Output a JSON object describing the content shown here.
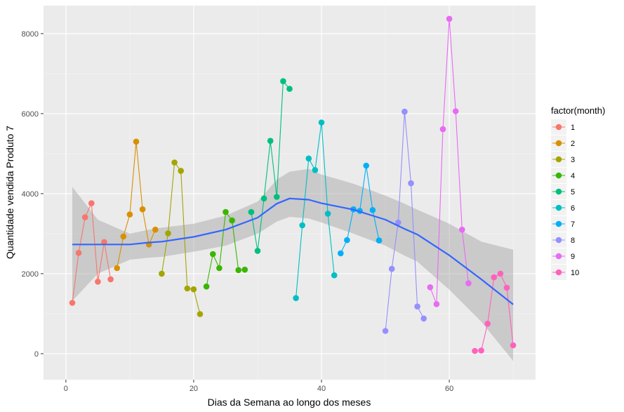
{
  "chart_data": {
    "type": "line",
    "xlabel": "Dias da Semana ao longo dos meses",
    "ylabel": "Quantidade vendida Produto 7",
    "xlim": [
      -3.5,
      73.5
    ],
    "ylim": [
      -650,
      8700
    ],
    "x_ticks": [
      0,
      20,
      40,
      60
    ],
    "y_ticks": [
      0,
      2000,
      4000,
      6000,
      8000
    ],
    "x_tick_labels": [
      "0",
      "20",
      "40",
      "60"
    ],
    "y_tick_labels": [
      "0",
      "2000",
      "4000",
      "6000",
      "8000"
    ],
    "grid": true,
    "legend": {
      "title": "factor(month)",
      "position": "right"
    },
    "series": [
      {
        "name": "1",
        "color": "#F8766D",
        "x": [
          1,
          2,
          3,
          4,
          5,
          6,
          7
        ],
        "y": [
          1270,
          2520,
          3410,
          3760,
          1800,
          2790,
          1860
        ]
      },
      {
        "name": "2",
        "color": "#D89000",
        "x": [
          8,
          9,
          10,
          11,
          12,
          13,
          14
        ],
        "y": [
          2140,
          2930,
          3480,
          5300,
          3610,
          2730,
          3100
        ]
      },
      {
        "name": "3",
        "color": "#A3A500",
        "x": [
          15,
          16,
          17,
          18,
          19,
          20,
          21
        ],
        "y": [
          2000,
          3010,
          4780,
          4570,
          1630,
          1610,
          990
        ]
      },
      {
        "name": "4",
        "color": "#39B600",
        "x": [
          22,
          23,
          24,
          25,
          26,
          27,
          28
        ],
        "y": [
          1680,
          2490,
          2140,
          3540,
          3330,
          2090,
          2100
        ]
      },
      {
        "name": "5",
        "color": "#00BF7D",
        "x": [
          29,
          30,
          31,
          32,
          33,
          34,
          35
        ],
        "y": [
          3540,
          2570,
          3880,
          5320,
          3920,
          6810,
          6620
        ]
      },
      {
        "name": "6",
        "color": "#00BFC4",
        "x": [
          36,
          37,
          38,
          39,
          40,
          41,
          42
        ],
        "y": [
          1390,
          3210,
          4880,
          4590,
          5780,
          3500,
          1960
        ]
      },
      {
        "name": "7",
        "color": "#00B0F6",
        "x": [
          43,
          44,
          45,
          46,
          47,
          48,
          49
        ],
        "y": [
          2510,
          2840,
          3610,
          3570,
          4700,
          3590,
          2830
        ]
      },
      {
        "name": "8",
        "color": "#9590FF",
        "x": [
          50,
          51,
          52,
          53,
          54,
          55,
          56
        ],
        "y": [
          570,
          2120,
          3280,
          6050,
          4260,
          1180,
          880
        ]
      },
      {
        "name": "9",
        "color": "#E76BF3",
        "x": [
          57,
          58,
          59,
          60,
          61,
          62,
          63
        ],
        "y": [
          1660,
          1240,
          5610,
          8370,
          6060,
          3100,
          1760
        ]
      },
      {
        "name": "10",
        "color": "#FF62BC",
        "x": [
          64,
          65,
          66,
          67,
          68,
          69,
          70
        ],
        "y": [
          70,
          80,
          750,
          1910,
          2000,
          1650,
          210
        ]
      }
    ],
    "smooth": {
      "color": "#3366FF",
      "x": [
        1,
        5,
        10,
        13,
        15,
        20,
        25,
        30,
        33,
        35,
        38,
        40,
        45,
        50,
        53,
        55,
        60,
        65,
        70
      ],
      "y": [
        2730,
        2730,
        2730,
        2780,
        2800,
        2920,
        3100,
        3400,
        3750,
        3880,
        3850,
        3760,
        3600,
        3350,
        3120,
        2980,
        2460,
        1860,
        1230
      ],
      "lower": [
        1320,
        2000,
        2350,
        2400,
        2420,
        2550,
        2700,
        3000,
        3300,
        3420,
        3380,
        3280,
        3000,
        2700,
        2450,
        2300,
        1600,
        800,
        -180
      ],
      "upper": [
        4170,
        3350,
        3000,
        3100,
        3150,
        3250,
        3450,
        3800,
        4350,
        4550,
        4620,
        4480,
        4250,
        3950,
        3750,
        3600,
        3250,
        2800,
        2600
      ]
    }
  }
}
